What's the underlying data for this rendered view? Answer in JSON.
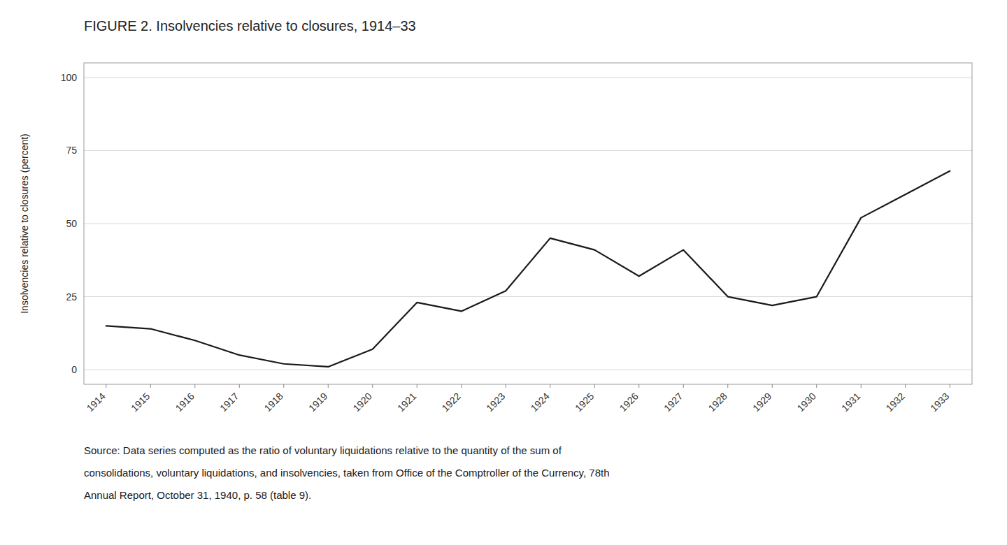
{
  "chart_data": {
    "type": "line",
    "title": "FIGURE 2. Insolvencies relative to closures, 1914–33",
    "y_label": "Insolvencies relative to closures (percent)",
    "x": [
      1914,
      1915,
      1916,
      1917,
      1918,
      1919,
      1920,
      1921,
      1922,
      1923,
      1924,
      1925,
      1926,
      1927,
      1928,
      1929,
      1930,
      1931,
      1932,
      1933
    ],
    "values": [
      15,
      14,
      10,
      5,
      2,
      1,
      7,
      23,
      20,
      27,
      45,
      41,
      32,
      41,
      25,
      22,
      25,
      52,
      60,
      68
    ],
    "color": "#1a1a1a",
    "xlim": [
      1913.5,
      1933.5
    ],
    "xticks": [
      1914,
      1915,
      1916,
      1917,
      1918,
      1919,
      1920,
      1921,
      1922,
      1923,
      1924,
      1925,
      1926,
      1927,
      1928,
      1929,
      1930,
      1931,
      1932,
      1933
    ],
    "ylim": [
      -5,
      105
    ],
    "yticks": [
      0,
      25,
      50,
      75,
      100
    ],
    "grid": true,
    "annotations": [
      "Source: Data series computed as the ratio of voluntary liquidations relative to the quantity of the sum of",
      "consolidations, voluntary liquidations, and insolvencies, taken from Office of the Comptroller of the Currency, 78th",
      "Annual Report, October 31, 1940, p. 58 (table 9)."
    ]
  }
}
